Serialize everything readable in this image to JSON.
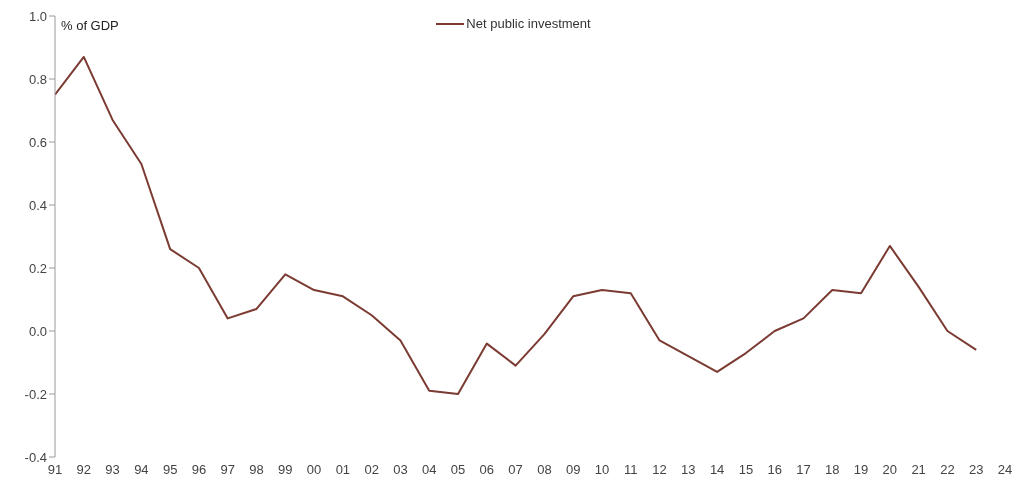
{
  "chart_data": {
    "type": "line",
    "ylabel": "% of GDP",
    "categories": [
      "91",
      "92",
      "93",
      "94",
      "95",
      "96",
      "97",
      "98",
      "99",
      "00",
      "01",
      "02",
      "03",
      "04",
      "05",
      "06",
      "07",
      "08",
      "09",
      "10",
      "11",
      "12",
      "13",
      "14",
      "15",
      "16",
      "17",
      "18",
      "19",
      "20",
      "21",
      "22",
      "23",
      "24"
    ],
    "series": [
      {
        "name": "Net public investment",
        "color": "#7b3b32",
        "values": [
          0.75,
          0.87,
          0.67,
          0.53,
          0.26,
          0.2,
          0.04,
          0.07,
          0.18,
          0.13,
          0.11,
          0.05,
          -0.03,
          -0.19,
          -0.2,
          -0.04,
          -0.11,
          -0.01,
          0.11,
          0.13,
          0.12,
          -0.03,
          -0.08,
          -0.13,
          -0.07,
          0.0,
          0.04,
          0.13,
          0.12,
          0.27,
          0.14,
          0.0,
          -0.06,
          null
        ]
      }
    ],
    "ylim": [
      -0.4,
      1.0
    ],
    "yticks": [
      {
        "value": -0.4,
        "label": "-0.4"
      },
      {
        "value": -0.2,
        "label": "-0.2"
      },
      {
        "value": 0,
        "label": "0.0"
      },
      {
        "value": 0.2,
        "label": "0.2"
      },
      {
        "value": 0.4,
        "label": "0.4"
      },
      {
        "value": 0.6,
        "label": "0.6"
      },
      {
        "value": 0.8,
        "label": "0.8"
      },
      {
        "value": 1.0,
        "label": "1.0"
      }
    ],
    "grid": false,
    "legend": "top",
    "marker": "none",
    "line_style": "solid"
  }
}
